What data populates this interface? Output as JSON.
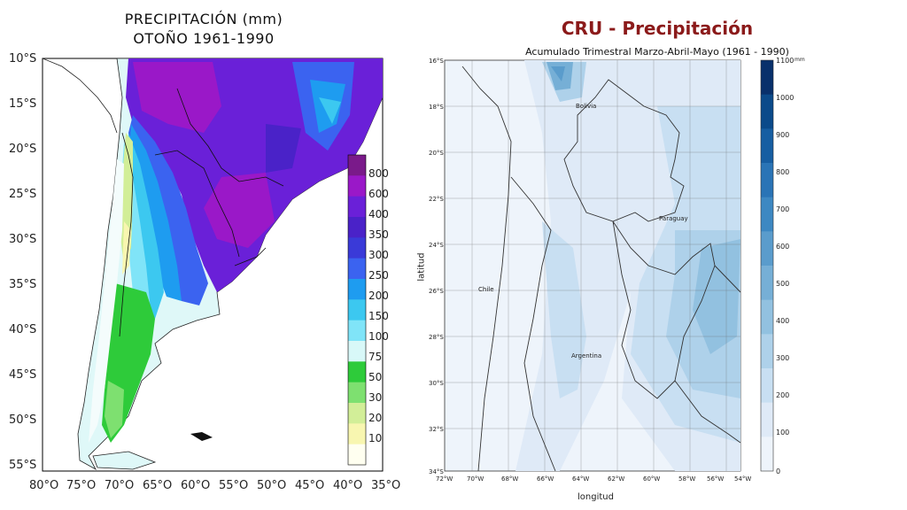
{
  "left_map": {
    "title_line1": "PRECIPITACIÓN  (mm)",
    "title_line2": "OTOÑO  1961-1990",
    "lat_labels": [
      "10°S",
      "15°S",
      "20°S",
      "25°S",
      "30°S",
      "35°S",
      "40°S",
      "45°S",
      "50°S",
      "55°S"
    ],
    "lon_labels": [
      "80°O",
      "75°O",
      "70°O",
      "65°O",
      "60°O",
      "55°O",
      "50°O",
      "45°O",
      "40°O",
      "35°O"
    ],
    "legend": {
      "labels": [
        "800",
        "600",
        "400",
        "350",
        "300",
        "250",
        "200",
        "150",
        "100",
        "75",
        "50",
        "30",
        "20",
        "10"
      ],
      "colors": [
        "#7a1a8a",
        "#9a18c8",
        "#6a20d8",
        "#4a22c8",
        "#3a3ad8",
        "#3b63f0",
        "#1e9cf0",
        "#3cc8f0",
        "#80e4f8",
        "#d8f8f8",
        "#2ecb3a",
        "#7ee070",
        "#d2ee98",
        "#f8f6b0",
        "#fffff0"
      ]
    }
  },
  "right_map": {
    "title": "CRU - Precipitación",
    "subtitle": "Acumulado Trimestral Marzo-Abril-Mayo (1961 - 1990)",
    "lat_labels": [
      "16°S",
      "18°S",
      "20°S",
      "22°S",
      "24°S",
      "26°S",
      "28°S",
      "30°S",
      "32°S",
      "34°S"
    ],
    "lon_labels": [
      "72°W",
      "70°W",
      "68°W",
      "66°W",
      "64°W",
      "62°W",
      "60°W",
      "58°W",
      "56°W",
      "54°W"
    ],
    "xlabel": "longitud",
    "ylabel": "latitud",
    "countries": [
      "Bolivia",
      "Paraguay",
      "Chile",
      "Argentina"
    ],
    "legend": {
      "unit": "mm",
      "labels": [
        "1100",
        "1000",
        "900",
        "800",
        "700",
        "600",
        "500",
        "400",
        "300",
        "200",
        "100",
        "0"
      ],
      "colors": [
        "#08306b",
        "#0b4a8a",
        "#175ea2",
        "#2a74b6",
        "#3d88c2",
        "#5a9ccc",
        "#76afd6",
        "#92c1e0",
        "#aed1ea",
        "#c8dff2",
        "#dfeaf7",
        "#eef4fb"
      ]
    }
  }
}
